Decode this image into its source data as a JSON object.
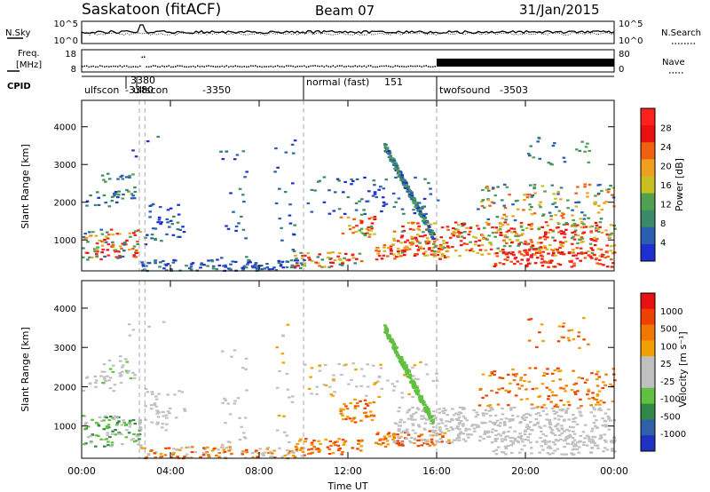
{
  "header": {
    "station": "Saskatoon (fitACF)",
    "beam": "Beam 07",
    "date": "31/Jan/2015"
  },
  "top_panels": {
    "nsky_label": "N.Sky",
    "nsky_ticks": [
      "10^5",
      "10^0"
    ],
    "nsearch_label": "N.Search",
    "nsearch_ticks": [
      "10^5",
      "10^0"
    ],
    "freq_label_1": "Freq.",
    "freq_label_2": "[MHz]",
    "freq_ticks": [
      "18",
      "8"
    ],
    "nave_label": "Nave",
    "nave_ticks": [
      "80",
      "0"
    ],
    "cpid_label": "CPID",
    "cpid_segments": [
      {
        "name": "ulfscon",
        "code": "-3380",
        "start_h": 0.0
      },
      {
        "name": "ulfscon",
        "code": "-3350",
        "start_h": 2.6
      },
      {
        "name": "normal (fast)",
        "code": "151",
        "start_h": 10.0
      },
      {
        "name": "twofsound",
        "code": "-3503",
        "start_h": 16.0
      }
    ],
    "cpid_marker": "3380"
  },
  "chart_data": [
    {
      "type": "heatmap",
      "name": "power",
      "ylabel": "Slant Range [km]",
      "yticks": [
        "1000",
        "2000",
        "3000",
        "4000"
      ],
      "ylim": [
        180,
        4700
      ],
      "xlim_hours": [
        0,
        24
      ],
      "colorbar_label": "Power [dB]",
      "colorbar_ticks": [
        "28",
        "24",
        "20",
        "16",
        "12",
        "8",
        "4"
      ]
    },
    {
      "type": "heatmap",
      "name": "velocity",
      "ylabel": "Slant Range [km]",
      "yticks": [
        "1000",
        "2000",
        "3000",
        "4000"
      ],
      "ylim": [
        180,
        4700
      ],
      "xlim_hours": [
        0,
        24
      ],
      "colorbar_label": "Velocity [m s⁻¹]",
      "colorbar_ticks": [
        "1000",
        "500",
        "100",
        "25",
        "-25",
        "-100",
        "-500",
        "-1000"
      ]
    }
  ],
  "x_axis": {
    "label": "Time UT",
    "ticks": [
      "00:00",
      "04:00",
      "08:00",
      "12:00",
      "16:00",
      "20:00",
      "00:00"
    ]
  },
  "colors": {
    "power_scale": [
      "#1f2fd0",
      "#2a5fb0",
      "#3a8a6a",
      "#50a050",
      "#c8c020",
      "#f0a020",
      "#f06010",
      "#e81010",
      "#ff2020"
    ],
    "velocity_scale": [
      "#2030c0",
      "#3060a8",
      "#308848",
      "#60c040",
      "#c0c0c0",
      "#c0c0c0",
      "#f0a000",
      "#f07800",
      "#f04000",
      "#e81010"
    ]
  }
}
